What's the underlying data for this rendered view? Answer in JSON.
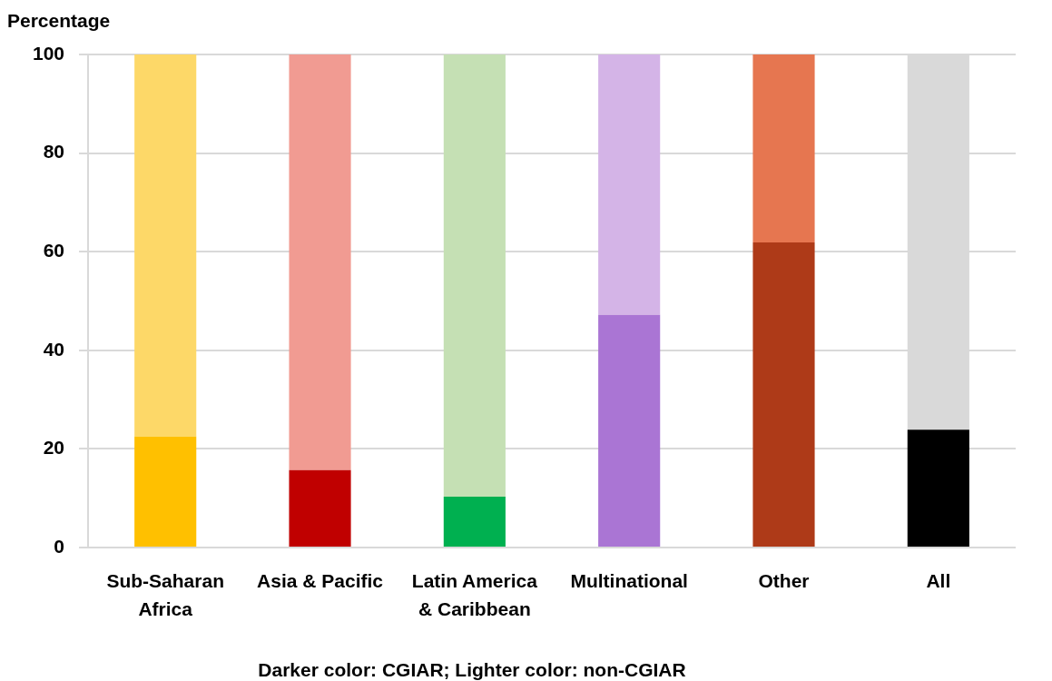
{
  "chart_data": {
    "type": "bar",
    "stacked": true,
    "ylabel": "Percentage",
    "categories": [
      "Sub-Saharan Africa",
      "Asia & Pacific",
      "Latin America & Caribbean",
      "Multinational",
      "Other",
      "All"
    ],
    "series": [
      {
        "colors": [
          "#ffc000",
          "#c00000",
          "#00b050",
          "#aa75d4",
          "#ae3a18",
          "#000000"
        ],
        "values": [
          22.5,
          15.7,
          10.3,
          47.2,
          61.9,
          23.9
        ]
      },
      {
        "colors": [
          "#fdd868",
          "#f19b92",
          "#c5e0b4",
          "#d4b4e7",
          "#e67650",
          "#d9d9d9"
        ],
        "values": [
          77.5,
          84.3,
          89.7,
          52.8,
          38.1,
          76.1
        ]
      }
    ],
    "ylim": [
      0,
      100
    ],
    "yticks": [
      0,
      20,
      40,
      60,
      80,
      100
    ],
    "grid": "y",
    "legend": false,
    "annotations": [
      "Darker color: CGIAR; Lighter color: non-CGIAR"
    ]
  }
}
